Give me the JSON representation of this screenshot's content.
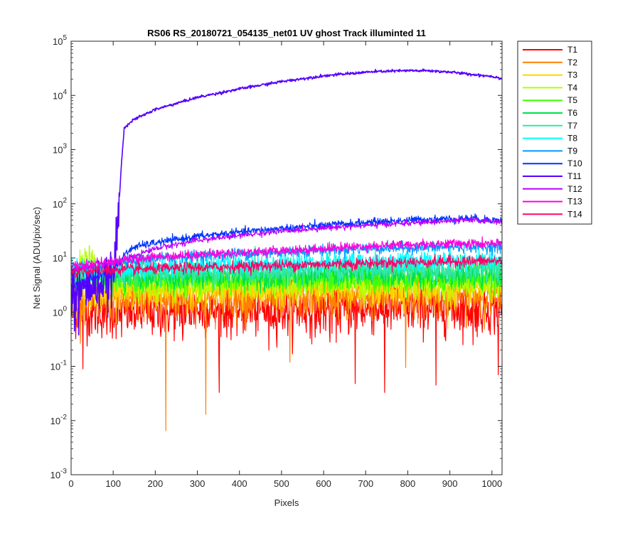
{
  "chart_data": {
    "type": "line",
    "title": "RS06 RS_20180721_054135_net01   UV ghost        Track illuminted 11",
    "xlabel": "Pixels",
    "ylabel": "Net Signal (ADU/pix/sec)",
    "xlim": [
      0,
      1024
    ],
    "ylim": [
      0.001,
      100000
    ],
    "yscale": "log",
    "x_ticks": [
      0,
      100,
      200,
      300,
      400,
      500,
      600,
      700,
      800,
      900,
      1000
    ],
    "y_ticks": [
      {
        "value": 0.001,
        "base": "10",
        "exp": "-3"
      },
      {
        "value": 0.01,
        "base": "10",
        "exp": "-2"
      },
      {
        "value": 0.1,
        "base": "10",
        "exp": "-1"
      },
      {
        "value": 1,
        "base": "10",
        "exp": "0"
      },
      {
        "value": 10,
        "base": "10",
        "exp": "1"
      },
      {
        "value": 100,
        "base": "10",
        "exp": "2"
      },
      {
        "value": 1000,
        "base": "10",
        "exp": "3"
      },
      {
        "value": 10000,
        "base": "10",
        "exp": "4"
      },
      {
        "value": 100000,
        "base": "10",
        "exp": "5"
      }
    ],
    "grid": false,
    "legend_position": "outside-right-top",
    "series": [
      {
        "name": "T1",
        "color": "#ff0000",
        "x": [
          0,
          100,
          200,
          300,
          400,
          500,
          600,
          700,
          800,
          900,
          1024
        ],
        "y": [
          1.0,
          1.0,
          1.0,
          1.1,
          1.1,
          1.1,
          1.1,
          1.2,
          1.2,
          1.2,
          1.2
        ],
        "noise": 0.55,
        "spikes": [
          {
            "x": 28,
            "y": 0.09
          },
          {
            "x": 352,
            "y": 0.033
          },
          {
            "x": 675,
            "y": 0.048
          },
          {
            "x": 745,
            "y": 0.033
          },
          {
            "x": 867,
            "y": 0.045
          },
          {
            "x": 1015,
            "y": 0.07
          },
          {
            "x": 120,
            "y": 0.35
          },
          {
            "x": 265,
            "y": 0.3
          },
          {
            "x": 470,
            "y": 0.2
          },
          {
            "x": 615,
            "y": 0.28
          },
          {
            "x": 955,
            "y": 0.25
          }
        ]
      },
      {
        "name": "T2",
        "color": "#ff7f00",
        "x": [
          0,
          100,
          200,
          300,
          400,
          500,
          600,
          700,
          800,
          900,
          1024
        ],
        "y": [
          1.6,
          1.7,
          1.7,
          1.8,
          1.8,
          1.9,
          1.9,
          1.9,
          2.0,
          2.0,
          2.0
        ],
        "noise": 0.45,
        "spikes": [
          {
            "x": 225,
            "y": 0.0065
          },
          {
            "x": 320,
            "y": 0.013
          },
          {
            "x": 520,
            "y": 0.12
          },
          {
            "x": 795,
            "y": 0.095
          },
          {
            "x": 415,
            "y": 0.45
          }
        ]
      },
      {
        "name": "T3",
        "color": "#ffd400",
        "x": [
          0,
          100,
          200,
          300,
          400,
          500,
          600,
          700,
          800,
          900,
          1024
        ],
        "y": [
          2.2,
          2.3,
          2.4,
          2.5,
          2.5,
          2.6,
          2.6,
          2.7,
          2.7,
          2.7,
          2.8
        ],
        "noise": 0.35,
        "spikes": []
      },
      {
        "name": "T4",
        "color": "#b3ff00",
        "x": [
          0,
          40,
          60,
          100,
          200,
          300,
          400,
          500,
          600,
          700,
          800,
          900,
          1024
        ],
        "y": [
          4.0,
          10.0,
          6.0,
          3.0,
          3.1,
          3.2,
          3.3,
          3.3,
          3.4,
          3.4,
          3.5,
          3.5,
          3.5
        ],
        "noise": 0.3,
        "spikes": [
          {
            "x": 48,
            "y": 12.5
          },
          {
            "x": 38,
            "y": 11.0
          },
          {
            "x": 895,
            "y": 0.5
          }
        ]
      },
      {
        "name": "T5",
        "color": "#40ff00",
        "x": [
          0,
          100,
          200,
          300,
          400,
          500,
          600,
          700,
          800,
          900,
          1024
        ],
        "y": [
          3.8,
          3.8,
          3.9,
          4.0,
          4.1,
          4.1,
          4.2,
          4.2,
          4.3,
          4.3,
          4.3
        ],
        "noise": 0.3,
        "spikes": []
      },
      {
        "name": "T6",
        "color": "#00e04a",
        "x": [
          0,
          100,
          200,
          300,
          400,
          500,
          600,
          700,
          800,
          900,
          1024
        ],
        "y": [
          4.4,
          4.5,
          4.6,
          4.7,
          4.8,
          4.8,
          4.9,
          4.9,
          5.0,
          5.0,
          5.0
        ],
        "noise": 0.28,
        "spikes": []
      },
      {
        "name": "T7",
        "color": "#33e6a8",
        "x": [
          0,
          100,
          200,
          300,
          400,
          500,
          600,
          700,
          800,
          900,
          1024
        ],
        "y": [
          5.0,
          5.1,
          5.3,
          5.4,
          5.6,
          5.7,
          5.8,
          5.9,
          6.0,
          6.0,
          6.0
        ],
        "noise": 0.25,
        "spikes": []
      },
      {
        "name": "T8",
        "color": "#00ffff",
        "x": [
          0,
          100,
          200,
          300,
          400,
          500,
          600,
          700,
          800,
          900,
          1024
        ],
        "y": [
          6.0,
          6.3,
          6.8,
          7.2,
          7.6,
          8.0,
          8.3,
          8.5,
          8.7,
          8.8,
          8.8
        ],
        "noise": 0.22,
        "spikes": []
      },
      {
        "name": "T9",
        "color": "#0099ff",
        "x": [
          0,
          100,
          150,
          200,
          300,
          400,
          500,
          600,
          700,
          800,
          900,
          1024
        ],
        "y": [
          6.0,
          7.0,
          9.0,
          10.0,
          11.0,
          12.0,
          13.0,
          14.0,
          15.0,
          15.5,
          16.0,
          16.0
        ],
        "noise": 0.12,
        "spikes": []
      },
      {
        "name": "T10",
        "color": "#0033ff",
        "x": [
          0,
          100,
          130,
          150,
          200,
          300,
          400,
          500,
          600,
          700,
          800,
          900,
          950,
          1024
        ],
        "y": [
          3.0,
          6.0,
          12.0,
          16.0,
          19.0,
          25.0,
          30.0,
          35.0,
          40.0,
          45.0,
          50.0,
          53.0,
          54.0,
          49.0
        ],
        "noise": 0.08,
        "spikes": []
      },
      {
        "name": "T11",
        "color": "#5500ff",
        "x": [
          0,
          60,
          100,
          110,
          120,
          126,
          132,
          150,
          200,
          300,
          400,
          500,
          600,
          700,
          750,
          800,
          850,
          900,
          950,
          1000,
          1024
        ],
        "y": [
          2.5,
          3.0,
          4.0,
          30.0,
          600.0,
          2500.0,
          2800.0,
          3600.0,
          5500.0,
          9200.0,
          13200.0,
          18000.0,
          23000.0,
          26800.0,
          28000.0,
          28600.0,
          28500.0,
          27000.0,
          24500.0,
          22500.0,
          20500.0
        ],
        "noise": 0.03,
        "noise_before": 0.5,
        "spikes": [
          {
            "x": 8,
            "y": 0.45
          },
          {
            "x": 18,
            "y": 0.38
          },
          {
            "x": 10,
            "y": 0.6
          }
        ]
      },
      {
        "name": "T12",
        "color": "#bb00ff",
        "x": [
          0,
          100,
          150,
          200,
          300,
          400,
          500,
          600,
          700,
          800,
          900,
          950,
          1024
        ],
        "y": [
          6.0,
          8.0,
          11.0,
          15.0,
          21.0,
          26.0,
          31.0,
          36.0,
          40.0,
          44.0,
          48.0,
          50.0,
          47.0
        ],
        "noise": 0.06,
        "spikes": []
      },
      {
        "name": "T13",
        "color": "#ff00dd",
        "x": [
          0,
          100,
          200,
          300,
          400,
          500,
          600,
          700,
          800,
          900,
          1024
        ],
        "y": [
          7.0,
          8.5,
          10.5,
          11.5,
          12.5,
          13.5,
          15.0,
          16.5,
          17.5,
          18.5,
          18.0
        ],
        "noise": 0.1,
        "spikes": []
      },
      {
        "name": "T14",
        "color": "#ff0066",
        "x": [
          0,
          100,
          200,
          300,
          400,
          500,
          600,
          700,
          800,
          900,
          1024
        ],
        "y": [
          5.5,
          6.0,
          6.3,
          6.6,
          7.0,
          7.3,
          7.6,
          8.0,
          8.3,
          8.6,
          8.8
        ],
        "noise": 0.12,
        "spikes": []
      }
    ]
  }
}
